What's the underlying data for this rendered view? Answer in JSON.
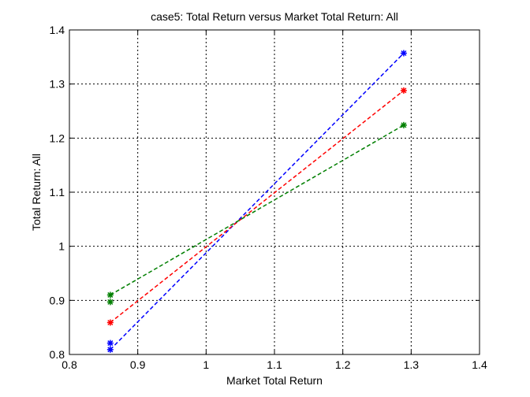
{
  "chart_data": {
    "type": "line",
    "title": "case5: Total Return versus Market Total Return: All",
    "xlabel": "Market Total Return",
    "ylabel": "Total Return: All",
    "xlim": [
      0.8,
      1.4
    ],
    "ylim": [
      0.8,
      1.4
    ],
    "xticks": [
      "0.8",
      "0.9",
      "1",
      "1.1",
      "1.2",
      "1.3",
      "1.4"
    ],
    "yticks": [
      "0.8",
      "0.9",
      "1",
      "1.1",
      "1.2",
      "1.3",
      "1.4"
    ],
    "grid": true,
    "legend": "none",
    "series": [
      {
        "color": "#0000ff",
        "points": [
          [
            0.8598,
            0.809
          ],
          [
            1.2891,
            1.357
          ]
        ]
      },
      {
        "color": "#ff0000",
        "points": [
          [
            0.8598,
            0.859
          ],
          [
            1.2891,
            1.288
          ]
        ]
      },
      {
        "color": "#007f00",
        "points": [
          [
            0.8598,
            0.91
          ],
          [
            1.2891,
            1.224
          ]
        ]
      }
    ],
    "extra_markers": [
      {
        "color": "#0000ff",
        "points": [
          [
            0.8598,
            0.821
          ]
        ]
      },
      {
        "color": "#007f00",
        "points": [
          [
            0.8598,
            0.897
          ]
        ]
      }
    ]
  }
}
